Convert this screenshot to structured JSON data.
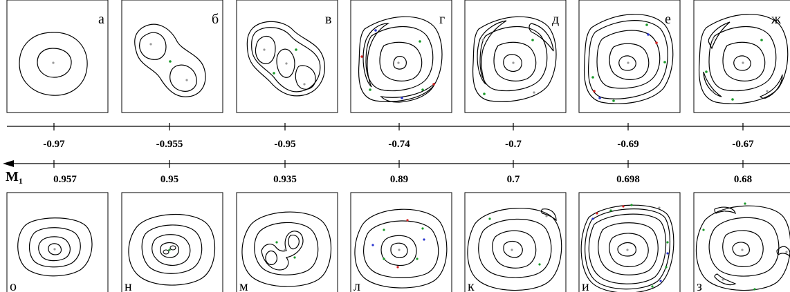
{
  "axis": {
    "label": "M",
    "subscript": "1"
  },
  "top_row": [
    {
      "letter": "а",
      "value": "-0.97"
    },
    {
      "letter": "б",
      "value": "-0.955"
    },
    {
      "letter": "в",
      "value": "-0.95"
    },
    {
      "letter": "г",
      "value": "-0.74"
    },
    {
      "letter": "д",
      "value": "-0.7"
    },
    {
      "letter": "е",
      "value": "-0.69"
    },
    {
      "letter": "ж",
      "value": "-0.67"
    }
  ],
  "bottom_row": [
    {
      "letter": "о",
      "value": "0.957"
    },
    {
      "letter": "н",
      "value": "0.95"
    },
    {
      "letter": "м",
      "value": "0.935"
    },
    {
      "letter": "л",
      "value": "0.89"
    },
    {
      "letter": "к",
      "value": "0.7"
    },
    {
      "letter": "и",
      "value": "0.698"
    },
    {
      "letter": "з",
      "value": "0.68"
    }
  ],
  "colors": {
    "line": "#000000",
    "point_gray": "#999999",
    "point_green": "#1a9a2a",
    "point_red": "#d62020",
    "point_blue": "#2a35d0"
  }
}
